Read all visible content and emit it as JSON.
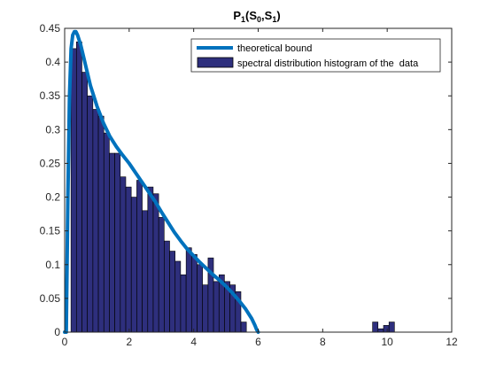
{
  "chart_data": {
    "type": "bar",
    "title": {
      "base": "P",
      "base_sub": "1",
      "open": "(S",
      "sub0": "0",
      "comma": ",S",
      "sub1": "1",
      "close": ")"
    },
    "xlabel": "",
    "ylabel": "",
    "xlim": [
      0,
      12
    ],
    "ylim": [
      0,
      0.45
    ],
    "xticks": [
      "0",
      "2",
      "4",
      "6",
      "8",
      "10",
      "12"
    ],
    "yticks": [
      "0",
      "0.05",
      "0.1",
      "0.15",
      "0.2",
      "0.25",
      "0.3",
      "0.35",
      "0.4",
      "0.45"
    ],
    "grid": false,
    "legend_placement": "top-right",
    "series": [
      {
        "name": "theoretical bound",
        "kind": "line",
        "color": "#0072BD",
        "x": [
          0.0,
          0.05,
          0.1,
          0.15,
          0.2,
          0.25,
          0.3,
          0.35,
          0.4,
          0.5,
          0.6,
          0.7,
          0.8,
          1.0,
          1.2,
          1.4,
          1.6,
          1.8,
          2.0,
          2.2,
          2.4,
          2.6,
          2.8,
          3.0,
          3.2,
          3.4,
          3.6,
          3.8,
          4.0,
          4.2,
          4.4,
          4.6,
          4.8,
          5.0,
          5.2,
          5.4,
          5.6,
          5.8,
          5.9,
          5.95,
          6.0
        ],
        "y": [
          0.0,
          0.0,
          0.2,
          0.35,
          0.42,
          0.44,
          0.445,
          0.445,
          0.44,
          0.425,
          0.405,
          0.385,
          0.365,
          0.335,
          0.31,
          0.29,
          0.275,
          0.262,
          0.25,
          0.236,
          0.222,
          0.208,
          0.194,
          0.178,
          0.163,
          0.148,
          0.135,
          0.123,
          0.113,
          0.103,
          0.094,
          0.085,
          0.077,
          0.068,
          0.058,
          0.047,
          0.035,
          0.02,
          0.01,
          0.004,
          0.0
        ]
      },
      {
        "name": "spectral distribution histogram of the  data",
        "kind": "bar",
        "color": "#2E2F7D",
        "edge": "#000000",
        "bin_width": 0.168,
        "x": [
          0.28,
          0.45,
          0.62,
          0.79,
          0.96,
          1.13,
          1.3,
          1.47,
          1.64,
          1.81,
          1.98,
          2.15,
          2.32,
          2.49,
          2.66,
          2.83,
          3.0,
          3.17,
          3.34,
          3.51,
          3.68,
          3.85,
          4.02,
          4.19,
          4.36,
          4.53,
          4.7,
          4.87,
          5.04,
          5.21,
          5.38,
          5.55,
          9.63,
          9.8,
          9.97,
          10.14
        ],
        "values": [
          0.42,
          0.43,
          0.385,
          0.35,
          0.33,
          0.32,
          0.295,
          0.265,
          0.265,
          0.23,
          0.215,
          0.2,
          0.225,
          0.18,
          0.215,
          0.205,
          0.17,
          0.135,
          0.12,
          0.105,
          0.085,
          0.125,
          0.115,
          0.1,
          0.07,
          0.11,
          0.075,
          0.085,
          0.075,
          0.07,
          0.06,
          0.015,
          0.015,
          0.005,
          0.01,
          0.015
        ]
      }
    ]
  }
}
